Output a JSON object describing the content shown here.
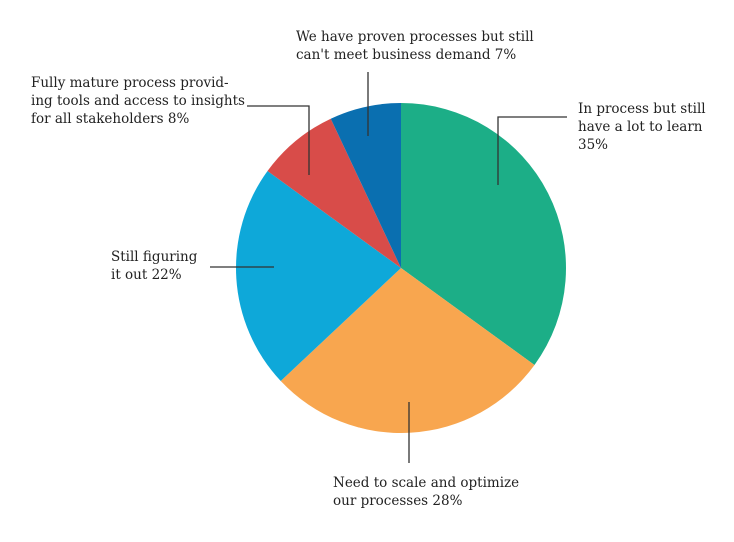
{
  "chart_data": {
    "type": "pie",
    "start_angle_deg": 0,
    "direction": "clockwise",
    "slices": [
      {
        "label": "In process but still\nhave a lot to learn\n35%",
        "value": 35,
        "color": "#1cae87"
      },
      {
        "label": "Need to scale and optimize\nour processes 28%",
        "value": 28,
        "color": "#f8a64f"
      },
      {
        "label": "Still figuring\nit out 22%",
        "value": 22,
        "color": "#0ea8d9"
      },
      {
        "label": "Fully mature process provid-\ning tools and access to insights\nfor all stakeholders 8%",
        "value": 8,
        "color": "#d84c49"
      },
      {
        "label": "We have proven processes but still\ncan't meet business demand 7%",
        "value": 7,
        "color": "#0a6fb0"
      }
    ]
  }
}
